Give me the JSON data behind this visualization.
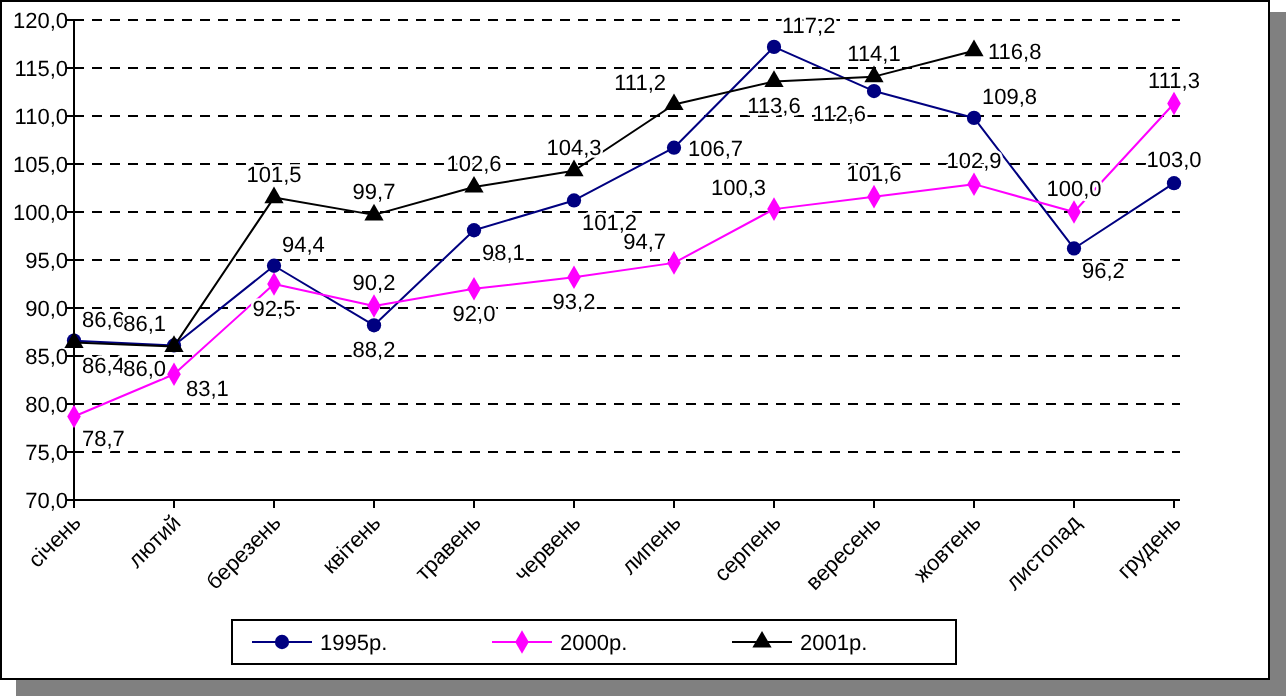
{
  "chart_data": {
    "type": "line",
    "categories": [
      "січень",
      "лютий",
      "березень",
      "квітень",
      "травень",
      "червень",
      "липень",
      "серпень",
      "вересень",
      "жовтень",
      "листопад",
      "грудень"
    ],
    "series": [
      {
        "name": "1995р.",
        "color": "#000080",
        "marker": "circle",
        "values": [
          86.6,
          86.1,
          94.4,
          88.2,
          98.1,
          101.2,
          106.7,
          117.2,
          112.6,
          109.8,
          96.2,
          103.0
        ],
        "value_labels": [
          "86,6",
          "86,1",
          "94,4",
          "88,2",
          "98,1",
          "101,2",
          "106,7",
          "117,2",
          "112,6",
          "109,8",
          "96,2",
          "103,0"
        ]
      },
      {
        "name": "2000р.",
        "color": "#ff00ff",
        "marker": "diamond",
        "values": [
          78.7,
          83.1,
          92.5,
          90.2,
          92.0,
          93.2,
          94.7,
          100.3,
          101.6,
          102.9,
          100.0,
          111.3
        ],
        "value_labels": [
          "78,7",
          "83,1",
          "92,5",
          "90,2",
          "92,0",
          "93,2",
          "94,7",
          "100,3",
          "101,6",
          "102,9",
          "100,0",
          "111,3"
        ]
      },
      {
        "name": "2001р.",
        "color": "#000000",
        "marker": "triangle",
        "values": [
          86.4,
          86.0,
          101.5,
          99.7,
          102.6,
          104.3,
          111.2,
          113.6,
          114.1,
          116.8,
          null,
          null
        ],
        "value_labels": [
          "86,4",
          "86,0",
          "101,5",
          "99,7",
          "102,6",
          "104,3",
          "111,2",
          "113,6",
          "114,1",
          "116,8",
          null,
          null
        ]
      }
    ],
    "ylim": [
      70,
      120
    ],
    "yticks": [
      {
        "value": 70,
        "label": "70,0"
      },
      {
        "value": 75,
        "label": "75,0"
      },
      {
        "value": 80,
        "label": "80,0"
      },
      {
        "value": 85,
        "label": "85,0"
      },
      {
        "value": 90,
        "label": "90,0"
      },
      {
        "value": 95,
        "label": "95,0"
      },
      {
        "value": 100,
        "label": "100,0"
      },
      {
        "value": 105,
        "label": "105,0"
      },
      {
        "value": 110,
        "label": "110,0"
      },
      {
        "value": 115,
        "label": "115,0"
      },
      {
        "value": 120,
        "label": "120,0"
      }
    ],
    "grid": "y",
    "line_style": "solid",
    "legend": "bottom"
  }
}
